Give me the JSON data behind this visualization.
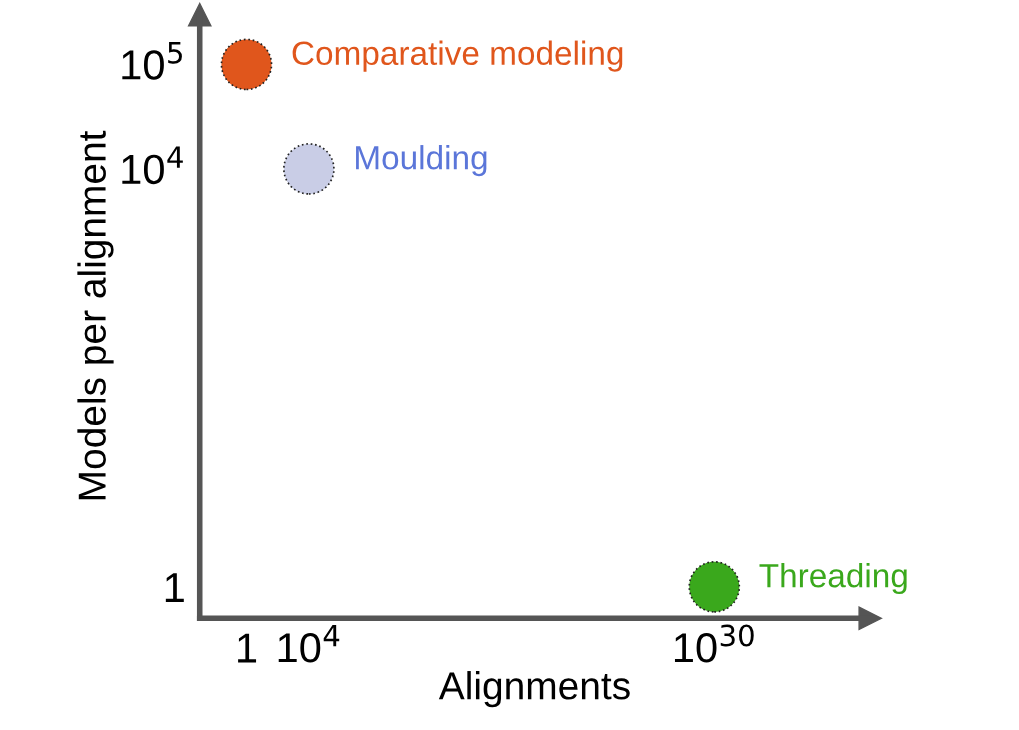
{
  "chart_data": {
    "type": "scatter",
    "xlabel": "Alignments",
    "ylabel": "Models per alignment",
    "log": "xy",
    "xlim": [
      0.001,
      1e+40
    ],
    "ylim": [
      0.5,
      300000
    ],
    "xticks": [
      1,
      {
        "value": 10000,
        "label": "10$^{4}$"
      },
      {
        "value": 1e+30,
        "label": "10$^{30}$"
      }
    ],
    "yticks": [
      1,
      {
        "value": 10000,
        "label": "10$^{4}$"
      },
      {
        "value": 100000,
        "label": "10$^{5}$"
      }
    ],
    "grid": false,
    "marker": "circle",
    "series": [
      {
        "name": "Comparative modeling",
        "color": "#e0561c",
        "x": [
          1
        ],
        "values": [
          100000
        ]
      },
      {
        "name": "Moulding",
        "color": "#c9cde6",
        "x": [
          10000
        ],
        "values": [
          10000
        ]
      },
      {
        "name": "Threading",
        "color": "#3aa81c",
        "x": [
          1e+30
        ],
        "values": [
          1
        ]
      }
    ]
  }
}
